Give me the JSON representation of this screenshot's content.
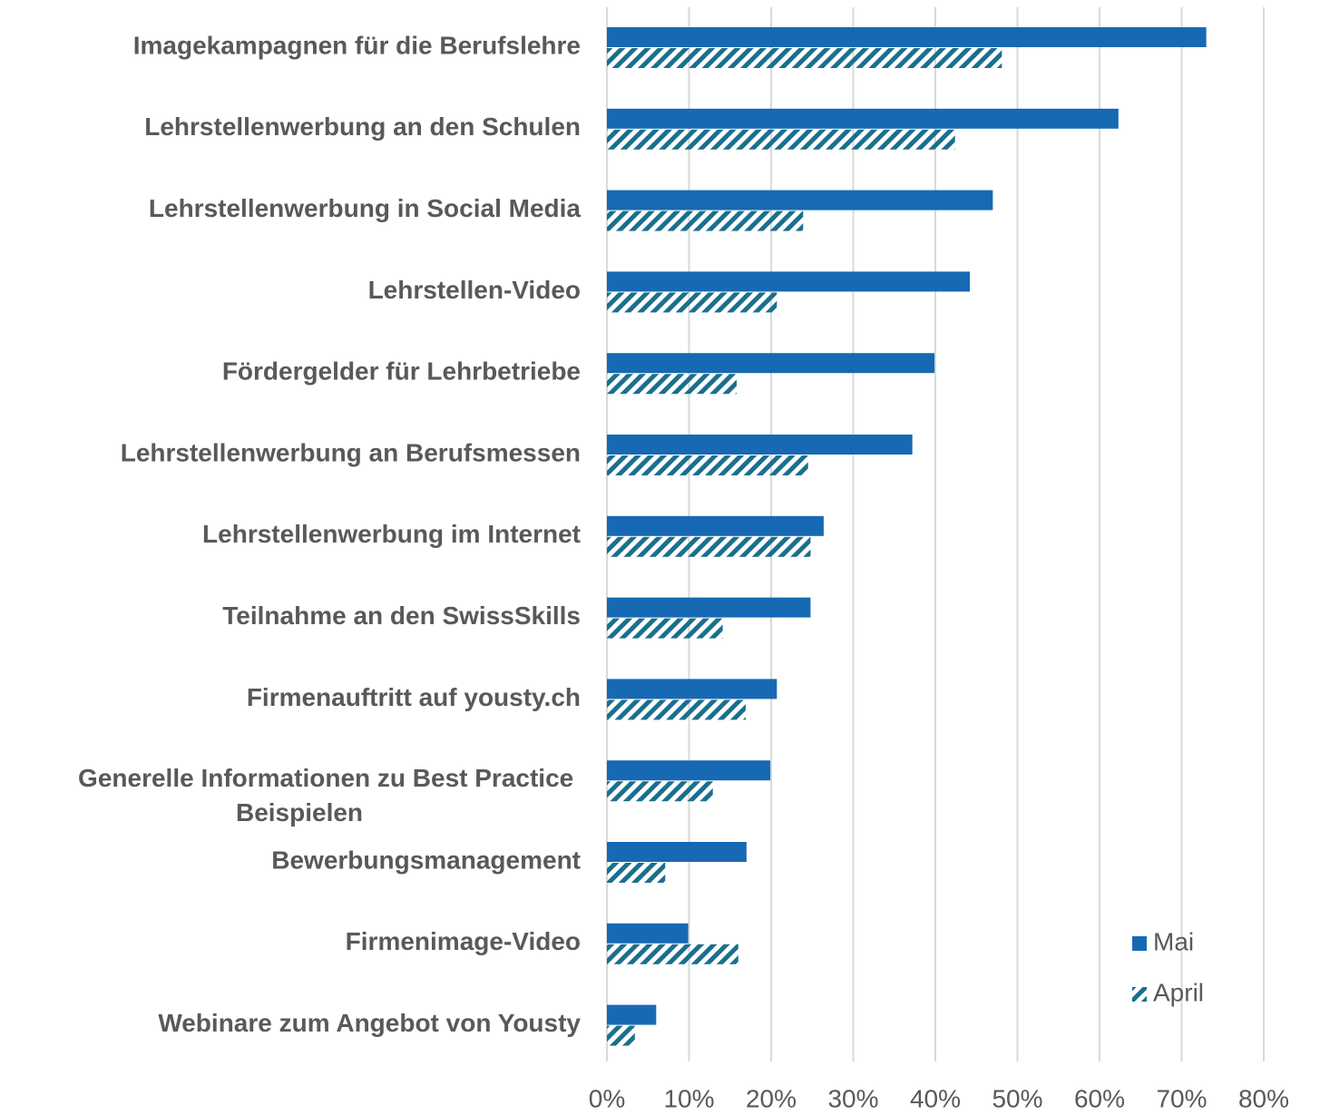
{
  "chart_data": {
    "type": "hbar",
    "categories": [
      "Imagekampagnen für die Berufslehre",
      "Lehrstellenwerbung an den Schulen",
      "Lehrstellenwerbung in Social Media",
      "Lehrstellen-Video",
      "Fördergelder für Lehrbetriebe",
      "Lehrstellenwerbung an Berufsmessen",
      "Lehrstellenwerbung im Internet",
      "Teilnahme an den SwissSkills",
      "Firmenauftritt auf yousty.ch",
      "Generelle Informationen zu Best Practice Beispielen",
      "Bewerbungsmanagement",
      "Firmenimage-Video",
      "Webinare zum Angebot von Yousty"
    ],
    "series": [
      {
        "name": "Mai",
        "color": "#1769b3",
        "pattern": "solid",
        "values": [
          73.0,
          62.3,
          47.0,
          44.2,
          39.9,
          37.2,
          26.4,
          24.8,
          20.7,
          19.9,
          17.0,
          9.9,
          6.0
        ]
      },
      {
        "name": "April",
        "color": "#1a6f8f",
        "pattern": "hatch",
        "values": [
          48.1,
          42.4,
          23.9,
          20.7,
          15.8,
          24.5,
          24.8,
          14.1,
          16.9,
          12.9,
          7.1,
          16.0,
          3.4
        ]
      }
    ],
    "xlim": [
      0,
      80
    ],
    "xticks": [
      {
        "value": 0,
        "label": "0%"
      },
      {
        "value": 10,
        "label": "10%"
      },
      {
        "value": 20,
        "label": "20%"
      },
      {
        "value": 30,
        "label": "30%"
      },
      {
        "value": 40,
        "label": "40%"
      },
      {
        "value": 50,
        "label": "50%"
      },
      {
        "value": 60,
        "label": "60%"
      },
      {
        "value": 70,
        "label": "70%"
      },
      {
        "value": 80,
        "label": "80%"
      }
    ],
    "grid": true,
    "legend": "bottom-right"
  }
}
